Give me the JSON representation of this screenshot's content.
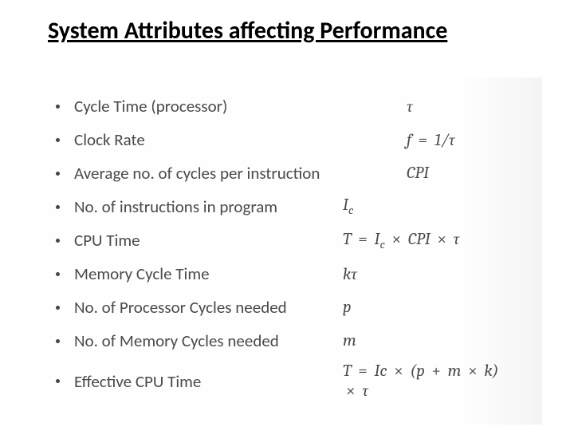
{
  "title": "System Attributes affecting Performance",
  "colors": {
    "title": "#000000",
    "text": "#4a4a4a",
    "bullet": "#444444",
    "background": "#ffffff",
    "content_bg_start": "#fefefe",
    "content_bg_end": "#f4f4f4"
  },
  "typography": {
    "title_fontsize": 30,
    "label_fontsize": 21,
    "formula_fontsize": 21,
    "title_font": "Calibri",
    "formula_font": "Cambria Math"
  },
  "rows": [
    {
      "label": "Cycle Time  (processor)",
      "formula_html": "τ"
    },
    {
      "label": "Clock Rate",
      "formula_html": "f <span class='op'>=</span> 1/τ"
    },
    {
      "label": "Average no. of cycles per instruction",
      "formula_html": "CPI"
    },
    {
      "label": "No. of instructions in program",
      "formula_html": "I<span class='sub'>c</span>"
    },
    {
      "label": "CPU Time",
      "formula_html": "T <span class='op'>=</span> I<span class='sub'>c</span> <span class='op'>×</span> CPI <span class='op'>×</span> τ"
    },
    {
      "label": "Memory Cycle Time",
      "formula_html": "kτ"
    },
    {
      "label": "No. of Processor Cycles needed",
      "formula_html": "p"
    },
    {
      "label": "No. of Memory Cycles needed",
      "formula_html": "m"
    },
    {
      "label": "Effective CPU Time",
      "formula_html": "T <span class='op'>=</span> Ic <span class='op'>×</span> (p <span class='op'>+</span> m <span class='op'>×</span> k) <span class='op'>×</span> τ"
    }
  ],
  "layout": {
    "label_col_indent": [
      0,
      0,
      0,
      0,
      0,
      0,
      0,
      0,
      0
    ],
    "formula_col_offset": [
      440,
      440,
      440,
      360,
      360,
      360,
      360,
      360,
      360
    ]
  }
}
